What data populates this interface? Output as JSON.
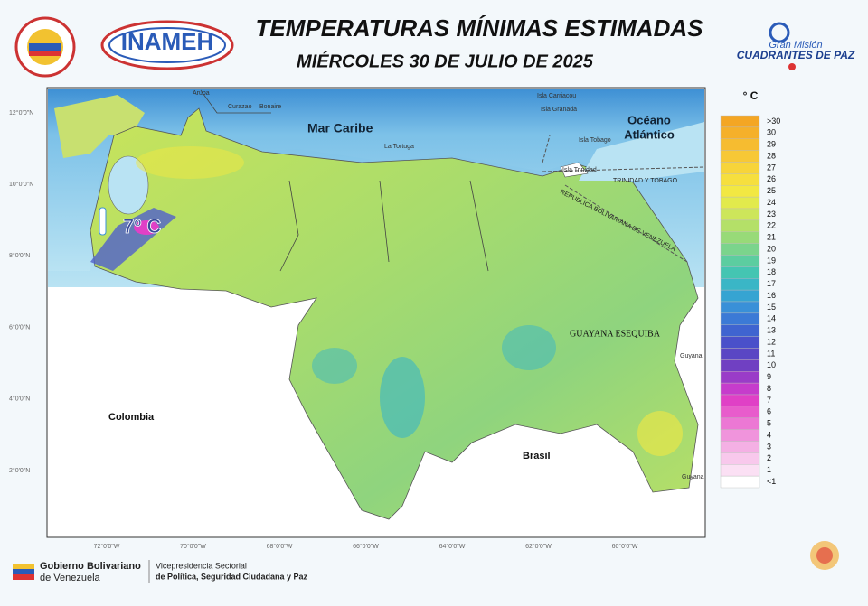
{
  "header": {
    "title": "TEMPERATURAS MÍNIMAS ESTIMADAS",
    "subtitle": "MIÉRCOLES 30 DE JULIO DE 2025",
    "logo_left": "INAMEH",
    "logo_right_top": "Gran Misión",
    "logo_right_bottom": "CUADRANTES DE PAZ"
  },
  "map": {
    "labels": {
      "aruba": "Aruba",
      "curazao": "Curazao",
      "bonaire": "Bonaire",
      "sea": "Mar Caribe",
      "ocean_1": "Océano",
      "ocean_2": "Atlántico",
      "carriacou": "Isla Carriacou",
      "granada": "Isla Granada",
      "tortuga": "La Tortuga",
      "tobago": "Isla Tobago",
      "trinidad": "Isla Trinidad",
      "tt": "TRINIDAD Y TOBAGO",
      "rbv": "REPUBLICA BOLIVARIANA DE VENEZUELA",
      "colombia": "Colombia",
      "brasil": "Brasil",
      "esequibo": "GUAYANA ESEQUIBA",
      "guyana_1": "Guyana",
      "guyana_2": "Guyana",
      "highlight": "7º C"
    },
    "lat_labels": [
      "12°0'0\"N",
      "10°0'0\"N",
      "8°0'0\"N",
      "6°0'0\"N",
      "4°0'0\"N",
      "2°0'0\"N"
    ],
    "lon_labels": [
      "72°0'0\"W",
      "70°0'0\"W",
      "68°0'0\"W",
      "66°0'0\"W",
      "64°0'0\"W",
      "62°0'0\"W",
      "60°0'0\"W"
    ]
  },
  "legend": {
    "title": "° C",
    "items": [
      {
        "label": ">30",
        "color": "#f4a623"
      },
      {
        "label": "30",
        "color": "#f5b02a"
      },
      {
        "label": "29",
        "color": "#f6bc30"
      },
      {
        "label": "28",
        "color": "#f7c836"
      },
      {
        "label": "27",
        "color": "#f7d43a"
      },
      {
        "label": "26",
        "color": "#f6df3e"
      },
      {
        "label": "25",
        "color": "#f2e842"
      },
      {
        "label": "24",
        "color": "#e2ea4c"
      },
      {
        "label": "23",
        "color": "#cde65a"
      },
      {
        "label": "22",
        "color": "#b4e068"
      },
      {
        "label": "21",
        "color": "#98da78"
      },
      {
        "label": "20",
        "color": "#7bd48c"
      },
      {
        "label": "19",
        "color": "#5ccda0"
      },
      {
        "label": "18",
        "color": "#44c5b2"
      },
      {
        "label": "17",
        "color": "#3ab6c6"
      },
      {
        "label": "16",
        "color": "#36a4d2"
      },
      {
        "label": "15",
        "color": "#3990d8"
      },
      {
        "label": "14",
        "color": "#3b7ad6"
      },
      {
        "label": "13",
        "color": "#3f64d0"
      },
      {
        "label": "12",
        "color": "#4a50ca"
      },
      {
        "label": "11",
        "color": "#5a46c4"
      },
      {
        "label": "10",
        "color": "#7040c2"
      },
      {
        "label": "9",
        "color": "#9a3cc8"
      },
      {
        "label": "8",
        "color": "#c63ccc"
      },
      {
        "label": "7",
        "color": "#e040c6"
      },
      {
        "label": "6",
        "color": "#e85ccc"
      },
      {
        "label": "5",
        "color": "#ec78d4"
      },
      {
        "label": "4",
        "color": "#f094dc"
      },
      {
        "label": "3",
        "color": "#f4b0e4"
      },
      {
        "label": "2",
        "color": "#f8c8ec"
      },
      {
        "label": "1",
        "color": "#fbe0f4"
      },
      {
        "label": "<1",
        "color": "#ffffff"
      }
    ]
  },
  "footer": {
    "gov_1": "Gobierno Bolivariano",
    "gov_2": "de Venezuela",
    "vice_1": "Vicepresidencia Sectorial",
    "vice_2": "de Política, Seguridad Ciudadana y Paz"
  }
}
